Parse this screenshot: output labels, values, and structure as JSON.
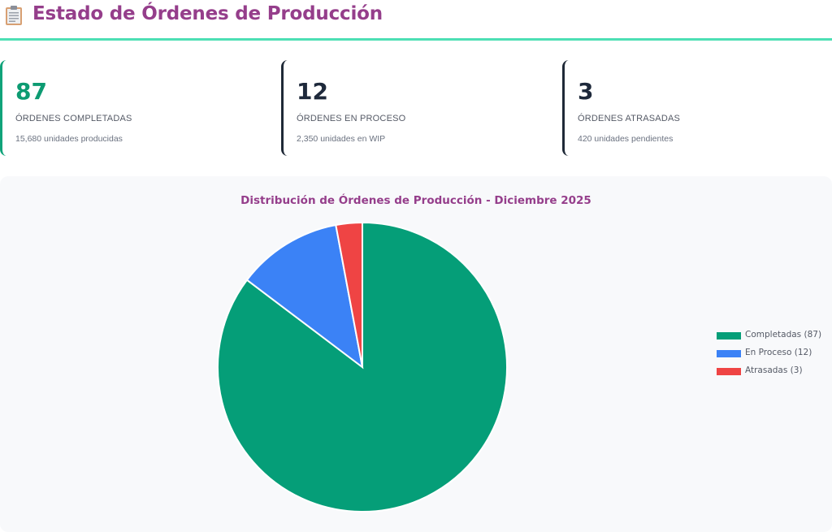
{
  "header": {
    "icon": "clipboard-icon",
    "title": "Estado de Órdenes de Producción"
  },
  "cards": [
    {
      "value": "87",
      "label": "ÓRDENES COMPLETADAS",
      "sub": "15,680 unidades producidas",
      "accent": "#10a37a"
    },
    {
      "value": "12",
      "label": "ÓRDENES EN PROCESO",
      "sub": "2,350 unidades en WIP",
      "accent": "#1f2937"
    },
    {
      "value": "3",
      "label": "ÓRDENES ATRASADAS",
      "sub": "420 unidades pendientes",
      "accent": "#1f2937"
    }
  ],
  "chart": {
    "title": "Distribución de Órdenes de Producción - Diciembre 2025",
    "legend": [
      {
        "label": "Completadas (87)",
        "color": "#059e78"
      },
      {
        "label": "En Proceso (12)",
        "color": "#3b82f6"
      },
      {
        "label": "Atrasadas (3)",
        "color": "#ef4444"
      }
    ]
  },
  "chart_data": {
    "type": "pie",
    "title": "Distribución de Órdenes de Producción - Diciembre 2025",
    "categories": [
      "Completadas",
      "En Proceso",
      "Atrasadas"
    ],
    "values": [
      87,
      12,
      3
    ],
    "colors": [
      "#059e78",
      "#3b82f6",
      "#ef4444"
    ],
    "legend_labels": [
      "Completadas (87)",
      "En Proceso (12)",
      "Atrasadas (3)"
    ],
    "legend_position": "right",
    "start_angle": "top",
    "direction": "clockwise"
  }
}
